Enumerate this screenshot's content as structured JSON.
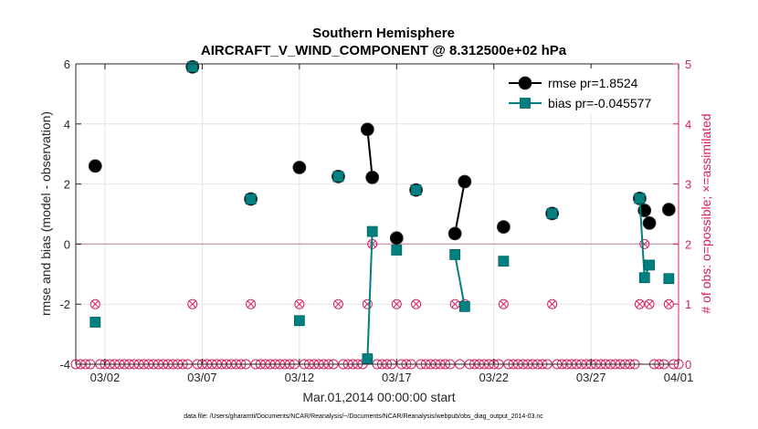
{
  "chart_data": {
    "type": "line",
    "title": "Southern Hemisphere",
    "subtitle": "AIRCRAFT_V_WIND_COMPONENT @ 8.312500e+02 hPa",
    "xlabel": "Mar.01,2014 00:00:00 start",
    "ylabel": "rmse and bias (model - observation)",
    "ylabel_right": "# of obs: o=possible; ×=assimilated",
    "footnote": "data file: /Users/gharamti/Documents/NCAR/Reanalysis/~/Documents/NCAR/Reanalysis/webpub/obs_diag_output_2014-03.nc",
    "xlim": [
      0.5,
      31.5
    ],
    "ylim": [
      -4,
      6
    ],
    "ylim_right": [
      0,
      5
    ],
    "xticks": [
      {
        "x": 2,
        "label": "03/02"
      },
      {
        "x": 7,
        "label": "03/07"
      },
      {
        "x": 12,
        "label": "03/12"
      },
      {
        "x": 17,
        "label": "03/17"
      },
      {
        "x": 22,
        "label": "03/22"
      },
      {
        "x": 27,
        "label": "03/27"
      },
      {
        "x": 32,
        "label": "04/01"
      }
    ],
    "yticks": [
      -4,
      -2,
      0,
      2,
      4,
      6
    ],
    "yticks_right": [
      0,
      1,
      2,
      3,
      4,
      5
    ],
    "legend_position": "top-right",
    "grid": true,
    "series": [
      {
        "name": "rmse",
        "legend_label": "rmse pr=1.8524",
        "color": "#000000",
        "marker": "circle",
        "connect_gap_days": 0.55,
        "points": [
          [
            1.5,
            2.6
          ],
          [
            6.5,
            5.9
          ],
          [
            9.5,
            1.5
          ],
          [
            12.0,
            2.55
          ],
          [
            14.0,
            2.25
          ],
          [
            15.5,
            3.82
          ],
          [
            15.75,
            2.22
          ],
          [
            17.0,
            0.2
          ],
          [
            18.0,
            1.8
          ],
          [
            20.0,
            0.35
          ],
          [
            20.5,
            2.08
          ],
          [
            22.5,
            0.57
          ],
          [
            25.0,
            1.02
          ],
          [
            29.5,
            1.52
          ],
          [
            29.75,
            1.12
          ],
          [
            30.0,
            0.7
          ],
          [
            31.0,
            1.15
          ]
        ]
      },
      {
        "name": "bias",
        "legend_label": "bias pr=-0.045577",
        "color": "#008080",
        "marker": "square",
        "connect_gap_days": 0.55,
        "points": [
          [
            1.5,
            -2.6
          ],
          [
            6.5,
            5.9
          ],
          [
            9.5,
            1.5
          ],
          [
            12.0,
            -2.55
          ],
          [
            14.0,
            2.25
          ],
          [
            15.5,
            -3.82
          ],
          [
            15.75,
            0.42
          ],
          [
            17.0,
            -0.2
          ],
          [
            18.0,
            1.8
          ],
          [
            20.0,
            -0.35
          ],
          [
            20.5,
            -2.08
          ],
          [
            22.5,
            -0.57
          ],
          [
            25.0,
            1.02
          ],
          [
            29.5,
            1.52
          ],
          [
            29.75,
            -1.12
          ],
          [
            30.0,
            -0.7
          ],
          [
            31.0,
            -1.15
          ]
        ]
      }
    ],
    "obs_counts": {
      "color": "#d62060",
      "possible": [
        [
          0.5,
          0
        ],
        [
          0.75,
          0
        ],
        [
          1.0,
          0
        ],
        [
          1.25,
          0
        ],
        [
          1.5,
          1
        ],
        [
          1.75,
          0
        ],
        [
          2.0,
          0
        ],
        [
          2.25,
          0
        ],
        [
          2.5,
          0
        ],
        [
          2.75,
          0
        ],
        [
          3.0,
          0
        ],
        [
          3.25,
          0
        ],
        [
          3.5,
          0
        ],
        [
          3.75,
          0
        ],
        [
          4.0,
          0
        ],
        [
          4.25,
          0
        ],
        [
          4.5,
          0
        ],
        [
          4.75,
          0
        ],
        [
          5.0,
          0
        ],
        [
          5.25,
          0
        ],
        [
          5.5,
          0
        ],
        [
          5.75,
          0
        ],
        [
          6.0,
          0
        ],
        [
          6.25,
          0
        ],
        [
          6.5,
          1
        ],
        [
          6.75,
          0
        ],
        [
          7.0,
          0
        ],
        [
          7.25,
          0
        ],
        [
          7.5,
          0
        ],
        [
          7.75,
          0
        ],
        [
          8.0,
          0
        ],
        [
          8.25,
          0
        ],
        [
          8.5,
          0
        ],
        [
          8.75,
          0
        ],
        [
          9.0,
          0
        ],
        [
          9.25,
          0
        ],
        [
          9.5,
          1
        ],
        [
          9.75,
          0
        ],
        [
          10.0,
          0
        ],
        [
          10.25,
          0
        ],
        [
          10.5,
          0
        ],
        [
          10.75,
          0
        ],
        [
          11.0,
          0
        ],
        [
          11.25,
          0
        ],
        [
          11.5,
          0
        ],
        [
          11.75,
          0
        ],
        [
          12.0,
          1
        ],
        [
          12.25,
          0
        ],
        [
          12.5,
          0
        ],
        [
          12.75,
          0
        ],
        [
          13.0,
          0
        ],
        [
          13.25,
          0
        ],
        [
          13.5,
          0
        ],
        [
          13.75,
          0
        ],
        [
          14.0,
          1
        ],
        [
          14.25,
          0
        ],
        [
          14.5,
          0
        ],
        [
          14.75,
          0
        ],
        [
          15.0,
          0
        ],
        [
          15.25,
          0
        ],
        [
          15.5,
          1
        ],
        [
          15.75,
          2
        ],
        [
          16.0,
          0
        ],
        [
          16.25,
          0
        ],
        [
          16.5,
          0
        ],
        [
          16.75,
          0
        ],
        [
          17.0,
          1
        ],
        [
          17.25,
          0
        ],
        [
          17.5,
          0
        ],
        [
          17.75,
          0
        ],
        [
          18.0,
          1
        ],
        [
          18.25,
          0
        ],
        [
          18.5,
          0
        ],
        [
          18.75,
          0
        ],
        [
          19.0,
          0
        ],
        [
          19.25,
          0
        ],
        [
          19.5,
          0
        ],
        [
          19.75,
          0
        ],
        [
          20.0,
          1
        ],
        [
          20.25,
          0
        ],
        [
          20.5,
          1
        ],
        [
          20.75,
          0
        ],
        [
          21.0,
          0
        ],
        [
          21.25,
          0
        ],
        [
          21.5,
          0
        ],
        [
          21.75,
          0
        ],
        [
          22.0,
          0
        ],
        [
          22.25,
          0
        ],
        [
          22.5,
          1
        ],
        [
          22.75,
          0
        ],
        [
          23.0,
          0
        ],
        [
          23.25,
          0
        ],
        [
          23.5,
          0
        ],
        [
          23.75,
          0
        ],
        [
          24.0,
          0
        ],
        [
          24.25,
          0
        ],
        [
          24.5,
          0
        ],
        [
          24.75,
          0
        ],
        [
          25.0,
          1
        ],
        [
          25.25,
          0
        ],
        [
          25.5,
          0
        ],
        [
          25.75,
          0
        ],
        [
          26.0,
          0
        ],
        [
          26.25,
          0
        ],
        [
          26.5,
          0
        ],
        [
          26.75,
          0
        ],
        [
          27.0,
          0
        ],
        [
          27.25,
          0
        ],
        [
          27.5,
          0
        ],
        [
          27.75,
          0
        ],
        [
          28.0,
          0
        ],
        [
          28.25,
          0
        ],
        [
          28.5,
          0
        ],
        [
          28.75,
          0
        ],
        [
          29.0,
          0
        ],
        [
          29.25,
          0
        ],
        [
          29.5,
          1
        ],
        [
          29.75,
          2
        ],
        [
          30.0,
          1
        ],
        [
          30.25,
          0
        ],
        [
          30.5,
          0
        ],
        [
          30.75,
          0
        ],
        [
          31.0,
          1
        ],
        [
          31.25,
          0
        ],
        [
          31.5,
          0
        ]
      ],
      "assimilated": [
        [
          1.5,
          1
        ],
        [
          6.5,
          1
        ],
        [
          9.5,
          1
        ],
        [
          12.0,
          1
        ],
        [
          14.0,
          1
        ],
        [
          15.5,
          1
        ],
        [
          15.75,
          2
        ],
        [
          17.0,
          1
        ],
        [
          18.0,
          1
        ],
        [
          20.0,
          1
        ],
        [
          20.5,
          1
        ],
        [
          22.5,
          1
        ],
        [
          25.0,
          1
        ],
        [
          29.5,
          1
        ],
        [
          29.75,
          2
        ],
        [
          30.0,
          1
        ],
        [
          31.0,
          1
        ]
      ]
    }
  }
}
